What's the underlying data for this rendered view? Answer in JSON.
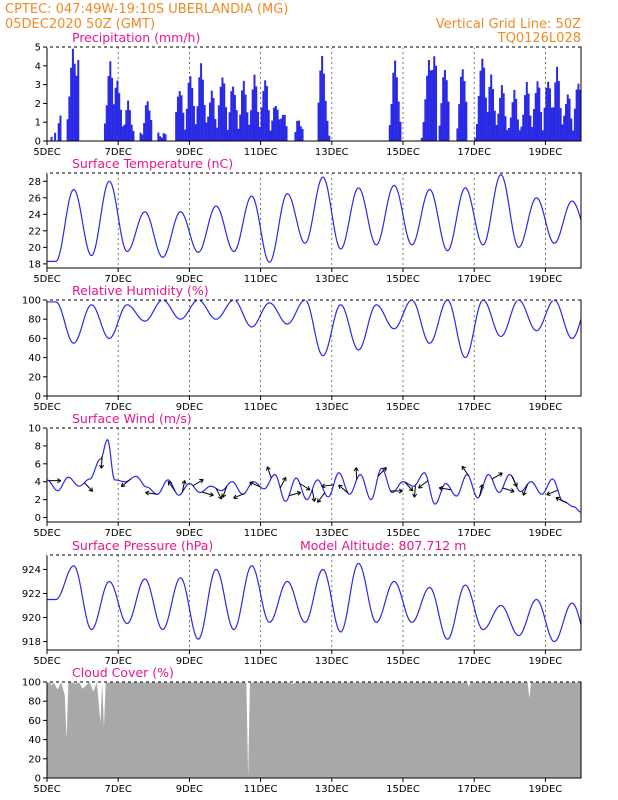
{
  "header": {
    "line1_left": "CPTEC:   047:49W-19:10S   UBERLANDIA (MG)",
    "line2_left": "05DEC2020 50Z (GMT)",
    "line1_right": "Vertical Grid Line: 50Z",
    "line2_right": "TQ0126L028"
  },
  "colors": {
    "header": "#f08a24",
    "titles": "#e8168c",
    "series": "#2a2ae6",
    "cloud": "#a8a8a8",
    "grid": "#555555"
  },
  "x_axis": {
    "labels": [
      "5DEC",
      "7DEC",
      "9DEC",
      "11DEC",
      "13DEC",
      "15DEC",
      "17DEC",
      "19DEC"
    ],
    "label_days": [
      0,
      2,
      4,
      6,
      8,
      10,
      12,
      14
    ],
    "range_days": [
      0,
      15.0
    ]
  },
  "chart_data": [
    {
      "id": "precip",
      "type": "bar",
      "title": "Precipitation (mm/h)",
      "ylim": [
        0,
        5
      ],
      "yticks": [
        0,
        1,
        2,
        3,
        4,
        5
      ],
      "x_step_days": 0.0625,
      "rain_days": [
        0.1,
        0.2,
        0.3,
        0.35,
        0.55,
        0.6,
        0.65,
        0.7,
        0.75,
        0.8,
        0.85,
        1.6,
        1.65,
        1.7,
        1.75,
        1.8,
        1.85,
        1.9,
        1.95,
        2.0,
        2.05,
        2.1,
        2.15,
        2.2,
        2.25,
        2.3,
        2.35,
        2.4,
        2.6,
        2.65,
        2.7,
        2.75,
        2.8,
        2.85,
        2.9,
        3.1,
        3.15,
        3.2,
        3.25,
        3.3,
        3.6,
        3.65,
        3.7,
        3.75,
        3.8,
        3.85,
        3.9,
        3.95,
        4.0,
        4.05,
        4.1,
        4.15,
        4.2,
        4.25,
        4.3,
        4.35,
        4.4,
        4.45,
        4.5,
        4.55,
        4.6,
        4.65,
        4.7,
        4.75,
        4.8,
        4.85,
        4.9,
        4.95,
        5.0,
        5.05,
        5.1,
        5.15,
        5.2,
        5.25,
        5.3,
        5.35,
        5.4,
        5.45,
        5.5,
        5.55,
        5.6,
        5.65,
        5.7,
        5.75,
        5.8,
        5.85,
        5.9,
        5.95,
        6.0,
        6.05,
        6.1,
        6.15,
        6.2,
        6.25,
        6.3,
        6.35,
        6.4,
        6.45,
        6.5,
        6.55,
        6.6,
        6.65,
        6.7,
        6.95,
        7.0,
        7.05,
        7.1,
        7.15,
        7.6,
        7.65,
        7.7,
        7.75,
        7.8,
        7.85,
        7.9,
        9.6,
        9.65,
        9.7,
        9.75,
        9.8,
        9.85,
        9.9,
        10.5,
        10.55,
        10.6,
        10.65,
        10.7,
        10.75,
        10.8,
        10.85,
        10.9,
        11.0,
        11.05,
        11.1,
        11.15,
        11.2,
        11.25,
        11.5,
        11.55,
        11.6,
        11.65,
        11.7,
        11.75,
        12.0,
        12.05,
        12.1,
        12.15,
        12.2,
        12.25,
        12.3,
        12.35,
        12.4,
        12.45,
        12.5,
        12.55,
        12.6,
        12.65,
        12.7,
        12.75,
        12.8,
        12.85,
        12.9,
        12.95,
        13.0,
        13.05,
        13.1,
        13.15,
        13.2,
        13.25,
        13.3,
        13.35,
        13.4,
        13.45,
        13.5,
        13.55,
        13.6,
        13.65,
        13.7,
        13.75,
        13.8,
        13.85,
        13.9,
        13.95,
        14.0,
        14.05,
        14.1,
        14.15,
        14.2,
        14.25,
        14.3,
        14.35,
        14.4,
        14.45,
        14.5,
        14.55,
        14.6,
        14.65,
        14.7,
        14.75,
        14.8,
        14.85,
        14.9,
        14.95
      ],
      "rain_peaks": [
        [
          0.35,
          1.3
        ],
        [
          0.7,
          4.8
        ],
        [
          0.85,
          4.3
        ],
        [
          1.75,
          4.1
        ],
        [
          1.95,
          3.2
        ],
        [
          2.25,
          2.0
        ],
        [
          2.8,
          2.1
        ],
        [
          3.7,
          2.8
        ],
        [
          4.0,
          3.5
        ],
        [
          4.3,
          4.0
        ],
        [
          4.6,
          2.6
        ],
        [
          4.9,
          3.5
        ],
        [
          5.2,
          3.0
        ],
        [
          5.5,
          3.1
        ],
        [
          5.8,
          3.4
        ],
        [
          6.1,
          3.3
        ],
        [
          6.4,
          2.0
        ],
        [
          6.6,
          1.5
        ],
        [
          7.05,
          1.1
        ],
        [
          7.7,
          4.4
        ],
        [
          9.75,
          4.2
        ],
        [
          10.7,
          4.3
        ],
        [
          10.85,
          4.6
        ],
        [
          11.15,
          3.9
        ],
        [
          11.65,
          3.9
        ],
        [
          12.2,
          4.5
        ],
        [
          12.45,
          3.4
        ],
        [
          12.75,
          2.9
        ],
        [
          13.1,
          2.6
        ],
        [
          13.45,
          3.0
        ],
        [
          13.75,
          3.2
        ],
        [
          14.05,
          3.3
        ],
        [
          14.3,
          3.8
        ],
        [
          14.6,
          2.5
        ],
        [
          14.9,
          3.2
        ]
      ]
    },
    {
      "id": "temp",
      "type": "line",
      "title": "Surface Temperature (nC)",
      "ylim": [
        17.5,
        29
      ],
      "yticks": [
        18,
        20,
        22,
        24,
        26,
        28
      ],
      "max_day_offset": 0.75,
      "min_day_offset": 0.25,
      "daily_max": [
        27.0,
        28.0,
        24.3,
        24.3,
        25.0,
        26.2,
        26.5,
        28.5,
        27.2,
        27.5,
        27.0,
        27.2,
        28.8,
        26.0,
        25.6,
        26.4
      ],
      "daily_min": [
        18.3,
        19.0,
        19.5,
        18.8,
        19.4,
        19.5,
        18.2,
        20.5,
        19.8,
        20.3,
        20.3,
        19.6,
        20.3,
        20.0,
        20.5,
        21.0
      ]
    },
    {
      "id": "rh",
      "type": "line",
      "title": "Relative Humidity (%)",
      "ylim": [
        0,
        100
      ],
      "yticks": [
        0,
        20,
        40,
        60,
        80,
        100
      ],
      "max_day_offset": 0.25,
      "min_day_offset": 0.75,
      "daily_max": [
        98,
        95,
        95,
        100,
        100,
        100,
        97,
        100,
        95,
        95,
        100,
        100,
        100,
        100,
        100,
        100
      ],
      "daily_min": [
        55,
        60,
        78,
        80,
        80,
        72,
        75,
        42,
        48,
        70,
        55,
        40,
        62,
        68,
        60,
        60
      ]
    },
    {
      "id": "wind",
      "type": "line",
      "title": "Surface Wind (m/s)",
      "ylim": [
        -0.5,
        10
      ],
      "yticks": [
        0,
        2,
        4,
        6,
        8,
        10
      ],
      "speed": [
        [
          0,
          4.2
        ],
        [
          0.3,
          3.0
        ],
        [
          0.6,
          4.5
        ],
        [
          0.9,
          3.5
        ],
        [
          1.2,
          4.3
        ],
        [
          1.5,
          6.5
        ],
        [
          1.7,
          8.7
        ],
        [
          1.9,
          4.2
        ],
        [
          2.2,
          4.0
        ],
        [
          2.5,
          4.6
        ],
        [
          2.8,
          3.4
        ],
        [
          3.1,
          2.6
        ],
        [
          3.4,
          4.2
        ],
        [
          3.7,
          2.5
        ],
        [
          4.0,
          3.8
        ],
        [
          4.3,
          2.8
        ],
        [
          4.6,
          3.5
        ],
        [
          4.9,
          3.0
        ],
        [
          5.2,
          4.0
        ],
        [
          5.5,
          2.6
        ],
        [
          5.8,
          4.0
        ],
        [
          6.1,
          3.2
        ],
        [
          6.4,
          4.8
        ],
        [
          6.7,
          1.8
        ],
        [
          7.0,
          4.4
        ],
        [
          7.3,
          2.0
        ],
        [
          7.6,
          4.2
        ],
        [
          7.9,
          2.3
        ],
        [
          8.2,
          5.0
        ],
        [
          8.5,
          2.6
        ],
        [
          8.8,
          4.8
        ],
        [
          9.1,
          2.0
        ],
        [
          9.4,
          5.5
        ],
        [
          9.7,
          2.8
        ],
        [
          10.0,
          4.0
        ],
        [
          10.3,
          3.5
        ],
        [
          10.6,
          5.0
        ],
        [
          10.9,
          1.5
        ],
        [
          11.2,
          3.8
        ],
        [
          11.5,
          2.4
        ],
        [
          11.8,
          4.8
        ],
        [
          12.1,
          2.2
        ],
        [
          12.4,
          4.8
        ],
        [
          12.7,
          2.8
        ],
        [
          13.0,
          4.8
        ],
        [
          13.3,
          2.9
        ],
        [
          13.6,
          4.0
        ],
        [
          13.9,
          2.6
        ],
        [
          14.2,
          4.3
        ],
        [
          14.5,
          1.8
        ],
        [
          14.8,
          1.2
        ],
        [
          15.0,
          0.6
        ]
      ],
      "vector_days": [
        0.05,
        1.05,
        1.55,
        2.35,
        3.1,
        3.6,
        3.8,
        4.1,
        4.35,
        4.75,
        5.05,
        5.55,
        6.0,
        6.3,
        6.55,
        6.8,
        7.1,
        7.45,
        7.8,
        8.05,
        8.45,
        8.7,
        9.3,
        9.65,
        10.05,
        10.35,
        10.7,
        11.35,
        11.85,
        12.15,
        12.5,
        12.8,
        13.05,
        13.5,
        14.35,
        14.6
      ]
    },
    {
      "id": "pres",
      "type": "line",
      "title": "Surface Pressure (hPa)",
      "annotation": "Model Altitude: 807.712 m",
      "ylim": [
        917.3,
        925.2
      ],
      "yticks": [
        918,
        920,
        922,
        924
      ],
      "daily_max": [
        924.3,
        923.0,
        923.2,
        923.3,
        924.0,
        924.3,
        923.0,
        924.0,
        924.5,
        923.0,
        922.5,
        922.7,
        921.0,
        921.5,
        921.2,
        920.0
      ],
      "daily_min": [
        921.5,
        919.0,
        919.5,
        919.0,
        918.2,
        919.0,
        919.6,
        919.6,
        918.8,
        919.6,
        919.6,
        918.2,
        919.0,
        918.5,
        918.0,
        917.6
      ]
    },
    {
      "id": "cloud",
      "type": "area",
      "title": "Cloud Cover (%)",
      "ylim": [
        0,
        100
      ],
      "yticks": [
        0,
        20,
        40,
        60,
        80,
        100
      ],
      "profile": [
        [
          0,
          100
        ],
        [
          0.1,
          100
        ],
        [
          0.12,
          96
        ],
        [
          0.18,
          100
        ],
        [
          0.3,
          92
        ],
        [
          0.4,
          100
        ],
        [
          0.5,
          86
        ],
        [
          0.55,
          40
        ],
        [
          0.6,
          100
        ],
        [
          0.7,
          100
        ],
        [
          0.8,
          98
        ],
        [
          0.9,
          100
        ],
        [
          1.0,
          93
        ],
        [
          1.2,
          100
        ],
        [
          1.3,
          90
        ],
        [
          1.4,
          100
        ],
        [
          1.5,
          58
        ],
        [
          1.55,
          100
        ],
        [
          1.6,
          53
        ],
        [
          1.65,
          100
        ],
        [
          1.7,
          100
        ],
        [
          5.6,
          100
        ],
        [
          5.65,
          1
        ],
        [
          5.7,
          100
        ],
        [
          6.8,
          100
        ],
        [
          6.9,
          98
        ],
        [
          7.0,
          100
        ],
        [
          8.6,
          100
        ],
        [
          8.7,
          99
        ],
        [
          8.8,
          100
        ],
        [
          11.8,
          100
        ],
        [
          11.85,
          95
        ],
        [
          11.9,
          100
        ],
        [
          13.5,
          100
        ],
        [
          13.55,
          83
        ],
        [
          13.6,
          100
        ],
        [
          15.0,
          100
        ]
      ]
    }
  ]
}
